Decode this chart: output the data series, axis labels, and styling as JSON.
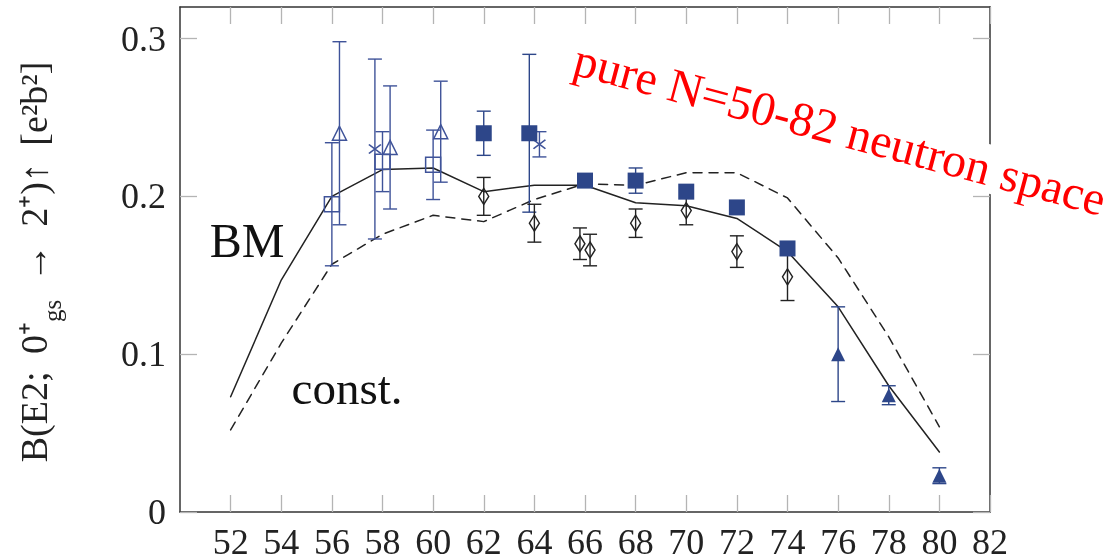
{
  "chart_data": {
    "type": "scatter",
    "ylabel": "B(E2; 0⁺$_{gs}$ → 2⁺)↑ [e²b²]",
    "xlim": [
      50,
      82
    ],
    "xticks": [
      52,
      54,
      56,
      58,
      60,
      62,
      64,
      66,
      68,
      70,
      72,
      74,
      76,
      78,
      80,
      82
    ],
    "ylim": [
      0,
      0.32
    ],
    "yticks": [
      0,
      0.1,
      0.2,
      0.3
    ],
    "annotations": [
      "BM",
      "const.",
      "pure N=50-82 neutron space"
    ],
    "series": [
      {
        "type": "line",
        "color": "#222222",
        "line_style": "solid",
        "marker": "none",
        "x": [
          52,
          54,
          56,
          58,
          60,
          62,
          64,
          66,
          68,
          70,
          72,
          74,
          76,
          78,
          80
        ],
        "values": [
          0.073,
          0.147,
          0.2,
          0.217,
          0.218,
          0.203,
          0.207,
          0.207,
          0.196,
          0.194,
          0.186,
          0.165,
          0.13,
          0.08,
          0.038
        ]
      },
      {
        "type": "line",
        "color": "#222222",
        "line_style": "dashed",
        "marker": "none",
        "x": [
          52,
          54,
          56,
          58,
          60,
          62,
          64,
          66,
          68,
          70,
          72,
          74,
          76,
          78,
          80
        ],
        "values": [
          0.052,
          0.107,
          0.157,
          0.176,
          0.188,
          0.184,
          0.198,
          0.208,
          0.207,
          0.215,
          0.215,
          0.199,
          0.161,
          0.111,
          0.054
        ]
      },
      {
        "color": "#3f5399",
        "marker": "square",
        "x": [
          56,
          58,
          60
        ],
        "values": [
          0.195,
          0.222,
          0.22
        ],
        "errors": [
          0.039,
          0.019,
          0.022
        ]
      },
      {
        "color": "#3f5399",
        "marker": "triangle",
        "x": [
          56.3,
          58.3,
          60.3
        ],
        "values": [
          0.24,
          0.231,
          0.241
        ],
        "errors": [
          0.058,
          0.039,
          0.032
        ]
      },
      {
        "color": "#3f5399",
        "marker": "cross",
        "x": [
          57.7,
          64.2
        ],
        "values": [
          0.23,
          0.233
        ],
        "errors": [
          0.057,
          0.008
        ]
      },
      {
        "color": "#2d4689",
        "marker": "square",
        "x": [
          62,
          63.8,
          66,
          68,
          70,
          72,
          74
        ],
        "values": [
          0.24,
          0.24,
          0.21,
          0.21,
          0.203,
          0.193,
          0.167
        ],
        "errors": [
          0.014,
          0.05,
          null,
          0.008,
          null,
          null,
          null
        ]
      },
      {
        "color": "#2d4689",
        "marker": "triangle",
        "x": [
          76,
          78,
          80
        ],
        "values": [
          0.1,
          0.074,
          0.023
        ],
        "errors": [
          0.03,
          0.006,
          0.005
        ]
      },
      {
        "color": "#222222",
        "marker": "diamond",
        "x": [
          62,
          64,
          65.8,
          66.2,
          68,
          70,
          72,
          74
        ],
        "values": [
          0.2,
          0.183,
          0.17,
          0.166,
          0.183,
          0.191,
          0.165,
          0.149
        ],
        "errors": [
          0.012,
          0.012,
          0.01,
          0.01,
          0.009,
          0.009,
          0.01,
          0.015
        ]
      }
    ]
  }
}
